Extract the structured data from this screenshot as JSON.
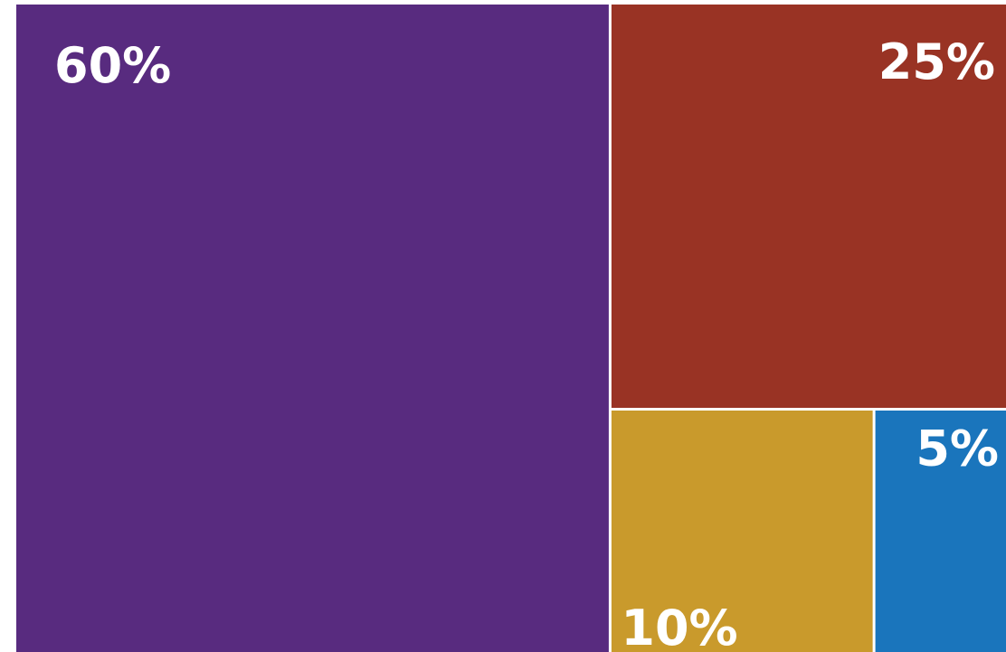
{
  "chart_data": {
    "type": "treemap",
    "title": "",
    "items": [
      {
        "label": "60%",
        "value": 60,
        "color": "#582b7f"
      },
      {
        "label": "25%",
        "value": 25,
        "color": "#993324"
      },
      {
        "label": "10%",
        "value": 10,
        "color": "#c99a2c"
      },
      {
        "label": "5%",
        "value": 5,
        "color": "#1a75bc"
      }
    ],
    "background": "#ffffff",
    "label_color": "#ffffff"
  }
}
